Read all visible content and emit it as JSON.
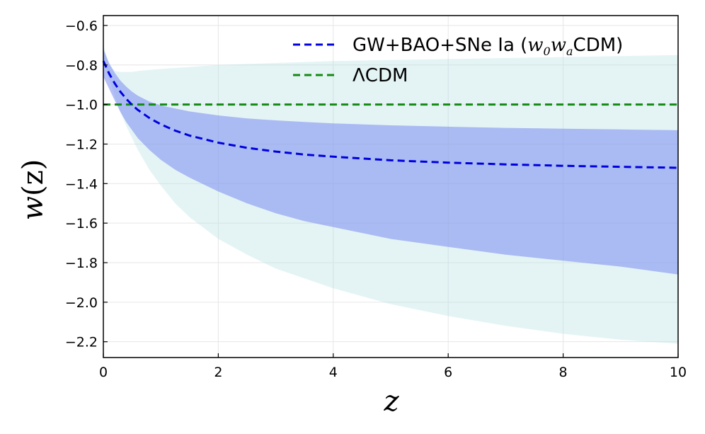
{
  "chart_data": {
    "type": "line",
    "x": [
      0,
      0.1,
      0.2,
      0.3,
      0.4,
      0.5,
      0.6,
      0.8,
      1,
      1.25,
      1.5,
      2,
      2.5,
      3,
      3.5,
      4,
      5,
      6,
      7,
      8,
      9,
      10
    ],
    "series": [
      {
        "name": "GW+BAO+SNe Ia",
        "label_text": "GW+BAO+SNe Ia (",
        "label_math": "w",
        "label_sub0": "0",
        "label_math2": "w",
        "label_suba": "a",
        "label_suffix": "CDM)",
        "color": "#0000dd",
        "style": "dashed",
        "values": [
          -0.78,
          -0.843,
          -0.894,
          -0.937,
          -0.972,
          -1.002,
          -1.027,
          -1.068,
          -1.1,
          -1.132,
          -1.157,
          -1.193,
          -1.219,
          -1.238,
          -1.253,
          -1.264,
          -1.282,
          -1.294,
          -1.303,
          -1.31,
          -1.315,
          -1.32
        ]
      },
      {
        "name": "ΛCDM",
        "label_lambda": "Λ",
        "label_rest": "CDM",
        "color": "#138a13",
        "style": "dashed",
        "values": [
          -1,
          -1,
          -1,
          -1,
          -1,
          -1,
          -1,
          -1,
          -1,
          -1,
          -1,
          -1,
          -1,
          -1,
          -1,
          -1,
          -1,
          -1,
          -1,
          -1,
          -1,
          -1
        ]
      }
    ],
    "bands": [
      {
        "name": "outer-band",
        "color": "#b2dfe3",
        "opacity": 0.35,
        "upper": [
          -0.7,
          -0.8,
          -0.83,
          -0.835,
          -0.835,
          -0.835,
          -0.83,
          -0.825,
          -0.82,
          -0.815,
          -0.81,
          -0.8,
          -0.795,
          -0.79,
          -0.785,
          -0.78,
          -0.775,
          -0.77,
          -0.765,
          -0.76,
          -0.755,
          -0.75
        ],
        "lower": [
          -0.78,
          -0.87,
          -0.96,
          -1.04,
          -1.11,
          -1.17,
          -1.23,
          -1.33,
          -1.41,
          -1.5,
          -1.57,
          -1.68,
          -1.76,
          -1.83,
          -1.88,
          -1.93,
          -2.01,
          -2.07,
          -2.12,
          -2.16,
          -2.19,
          -2.21
        ]
      },
      {
        "name": "inner-band",
        "color": "#7a8cf0",
        "opacity": 0.55,
        "upper": [
          -0.72,
          -0.79,
          -0.84,
          -0.88,
          -0.91,
          -0.935,
          -0.955,
          -0.985,
          -1.005,
          -1.02,
          -1.035,
          -1.055,
          -1.07,
          -1.08,
          -1.088,
          -1.095,
          -1.105,
          -1.112,
          -1.118,
          -1.122,
          -1.126,
          -1.13
        ],
        "lower": [
          -0.86,
          -0.92,
          -0.98,
          -1.04,
          -1.09,
          -1.13,
          -1.17,
          -1.23,
          -1.28,
          -1.33,
          -1.37,
          -1.44,
          -1.5,
          -1.55,
          -1.59,
          -1.62,
          -1.68,
          -1.72,
          -1.76,
          -1.79,
          -1.82,
          -1.86
        ]
      }
    ],
    "xlabel": "z",
    "ylabel_w": "w",
    "ylabel_arg": "(z)",
    "xlim": [
      0,
      10
    ],
    "ylim": [
      -2.28,
      -0.55
    ],
    "xticks": [
      0,
      2,
      4,
      6,
      8,
      10
    ],
    "xtick_labels": [
      "0",
      "2",
      "4",
      "6",
      "8",
      "10"
    ],
    "yticks": [
      -0.6,
      -0.8,
      -1.0,
      -1.2,
      -1.4,
      -1.6,
      -1.8,
      -2.0,
      -2.2
    ],
    "ytick_labels": [
      "−0.6",
      "−0.8",
      "−1.0",
      "−1.2",
      "−1.4",
      "−1.6",
      "−1.8",
      "−2.0",
      "−2.2"
    ],
    "grid": true,
    "legend_position": "top-right"
  }
}
